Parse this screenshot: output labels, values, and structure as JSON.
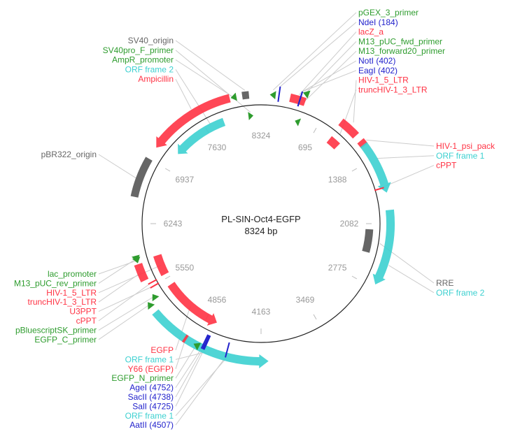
{
  "plasmid": {
    "name": "PL-SIN-Oct4-EGFP",
    "length_label": "8324 bp",
    "length": 8324
  },
  "colors": {
    "feature": "#ff3344",
    "primer": "#2e9c2e",
    "orf": "#3cd0d0",
    "site": "#2222cc",
    "origin": "#666666",
    "promoter": "#2e9c2e"
  },
  "ticks": [
    "695",
    "1388",
    "2082",
    "2775",
    "3469",
    "4163",
    "4856",
    "5550",
    "6243",
    "6937",
    "7630",
    "8324"
  ],
  "features": [
    {
      "name": "Ampicillin",
      "start": 7075,
      "end": 8000,
      "strand": -1,
      "type": "feature",
      "track": "outer"
    },
    {
      "name": "ORF frame 2",
      "start": 7168,
      "end": 7862,
      "strand": -1,
      "type": "orf",
      "track": "inner"
    },
    {
      "name": "AmpR_promoter",
      "start": 8010,
      "end": 8070,
      "strand": -1,
      "type": "primer",
      "track": "outer"
    },
    {
      "name": "SV40_origin",
      "start": 8130,
      "end": 8200,
      "strand": 0,
      "type": "origin",
      "track": "outer"
    },
    {
      "name": "SV40pro_F_primer",
      "start": 8170,
      "end": 8230,
      "strand": 1,
      "type": "primer",
      "track": "inner"
    },
    {
      "name": "pGEX_3_primer",
      "start": 90,
      "end": 150,
      "strand": -1,
      "type": "primer",
      "track": "outer"
    },
    {
      "name": "lacZ_a",
      "start": 300,
      "end": 460,
      "strand": 0,
      "type": "feature",
      "track": "outer"
    },
    {
      "name": "M13_pUC_fwd_primer",
      "start": 410,
      "end": 470,
      "strand": -1,
      "type": "primer",
      "track": "far"
    },
    {
      "name": "M13_forward20_primer",
      "start": 420,
      "end": 480,
      "strand": -1,
      "type": "primer",
      "track": "inner"
    },
    {
      "name": "HIV-1_5_LTR",
      "start": 880,
      "end": 1090,
      "strand": 0,
      "type": "feature",
      "track": "outer"
    },
    {
      "name": "truncHIV-1_3_LTR",
      "start": 900,
      "end": 1030,
      "strand": 0,
      "type": "feature",
      "track": "inner"
    },
    {
      "name": "HIV-1_psi_pack",
      "start": 1160,
      "end": 1225,
      "strand": 0,
      "type": "feature",
      "track": "outer"
    },
    {
      "name": "ORF frame 1",
      "start": 1210,
      "end": 1760,
      "strand": 1,
      "type": "orf",
      "track": "outer"
    },
    {
      "name": "cPPT",
      "start": 1690,
      "end": 1715,
      "strand": 0,
      "type": "feature",
      "track": "tick"
    },
    {
      "name": "ORF frame 2",
      "start": 1940,
      "end": 2730,
      "strand": 1,
      "type": "orf",
      "track": "outer"
    },
    {
      "name": "RRE",
      "start": 2150,
      "end": 2430,
      "strand": 0,
      "type": "origin",
      "track": "inner"
    },
    {
      "name": "EGFP",
      "start": 4717,
      "end": 5457,
      "strand": -1,
      "type": "feature",
      "track": "inner"
    },
    {
      "name": "ORF frame 1",
      "start": 4090,
      "end": 5320,
      "strand": -1,
      "type": "orf",
      "track": "far"
    },
    {
      "name": "Y66 (EGFP)",
      "start": 4920,
      "end": 4945,
      "strand": 0,
      "type": "feature",
      "track": "far"
    },
    {
      "name": "EGFP_N_primer",
      "start": 4780,
      "end": 4840,
      "strand": 1,
      "type": "primer",
      "track": "far"
    },
    {
      "name": "EGFP_C_primer",
      "start": 5380,
      "end": 5440,
      "strand": 1,
      "type": "primer",
      "track": "far"
    },
    {
      "name": "pBluescriptSK_primer",
      "start": 5420,
      "end": 5480,
      "strand": 1,
      "type": "primer",
      "track": "outer"
    },
    {
      "name": "U3PPT",
      "start": 5530,
      "end": 5560,
      "strand": 0,
      "type": "feature",
      "track": "tick"
    },
    {
      "name": "cPPT",
      "start": 5580,
      "end": 5600,
      "strand": 0,
      "type": "feature",
      "track": "tick"
    },
    {
      "name": "HIV-1_5_LTR",
      "start": 5600,
      "end": 5850,
      "strand": 0,
      "type": "feature",
      "track": "inner"
    },
    {
      "name": "truncHIV-1_3_LTR",
      "start": 5640,
      "end": 5820,
      "strand": 0,
      "type": "feature",
      "track": "outer"
    },
    {
      "name": "lac_promoter",
      "start": 5830,
      "end": 5890,
      "strand": -1,
      "type": "primer",
      "track": "outer"
    },
    {
      "name": "M13_pUC_rev_primer",
      "start": 5850,
      "end": 5910,
      "strand": -1,
      "type": "primer",
      "track": "outer"
    },
    {
      "name": "pBR322_origin",
      "start": 6520,
      "end": 6940,
      "strand": 0,
      "type": "origin",
      "track": "outer"
    }
  ],
  "sites": [
    {
      "name": "NdeI (184)",
      "pos": 184
    },
    {
      "name": "NotI (402)",
      "pos": 402
    },
    {
      "name": "EagI (402)",
      "pos": 402
    },
    {
      "name": "AgeI (4752)",
      "pos": 4752
    },
    {
      "name": "SacII (4738)",
      "pos": 4738
    },
    {
      "name": "SalI (4725)",
      "pos": 4725
    },
    {
      "name": "AatII (4507)",
      "pos": 4507
    }
  ],
  "labels": {
    "top_right": [
      {
        "text": "pGEX_3_primer",
        "type": "primer"
      },
      {
        "text": "NdeI (184)",
        "type": "site"
      },
      {
        "text": "lacZ_a",
        "type": "feature"
      },
      {
        "text": "M13_pUC_fwd_primer",
        "type": "primer"
      },
      {
        "text": "M13_forward20_primer",
        "type": "primer"
      },
      {
        "text": "NotI (402)",
        "type": "site"
      },
      {
        "text": "EagI (402)",
        "type": "site"
      },
      {
        "text": "HIV-1_5_LTR",
        "type": "feature"
      },
      {
        "text": "truncHIV-1_3_LTR",
        "type": "feature"
      }
    ],
    "top_left": [
      {
        "text": "SV40_origin",
        "type": "origin"
      },
      {
        "text": "SV40pro_F_primer",
        "type": "primer"
      },
      {
        "text": "AmpR_promoter",
        "type": "primer"
      },
      {
        "text": "ORF frame 2",
        "type": "orf"
      },
      {
        "text": "Ampicillin",
        "type": "feature"
      }
    ],
    "left": [
      {
        "text": "pBR322_origin",
        "type": "origin"
      }
    ],
    "right_upper": [
      {
        "text": "HIV-1_psi_pack",
        "type": "feature"
      },
      {
        "text": "ORF frame 1",
        "type": "orf"
      },
      {
        "text": "cPPT",
        "type": "feature"
      }
    ],
    "right_lower": [
      {
        "text": "RRE",
        "type": "origin"
      },
      {
        "text": "ORF frame 2",
        "type": "orf"
      }
    ],
    "bottom_left": [
      {
        "text": "lac_promoter",
        "type": "primer"
      },
      {
        "text": "M13_pUC_rev_primer",
        "type": "primer"
      },
      {
        "text": "HIV-1_5_LTR",
        "type": "feature"
      },
      {
        "text": "truncHIV-1_3_LTR",
        "type": "feature"
      },
      {
        "text": "U3PPT",
        "type": "feature"
      },
      {
        "text": "cPPT",
        "type": "feature"
      },
      {
        "text": "pBluescriptSK_primer",
        "type": "primer"
      },
      {
        "text": "EGFP_C_primer",
        "type": "primer"
      }
    ],
    "bottom": [
      {
        "text": "EGFP",
        "type": "feature"
      },
      {
        "text": "ORF frame 1",
        "type": "orf"
      },
      {
        "text": "Y66 (EGFP)",
        "type": "feature"
      },
      {
        "text": "EGFP_N_primer",
        "type": "primer"
      },
      {
        "text": "AgeI (4752)",
        "type": "site"
      },
      {
        "text": "SacII (4738)",
        "type": "site"
      },
      {
        "text": "SalI (4725)",
        "type": "site"
      },
      {
        "text": "ORF frame 1",
        "type": "orf"
      },
      {
        "text": "AatII (4507)",
        "type": "site"
      }
    ]
  }
}
